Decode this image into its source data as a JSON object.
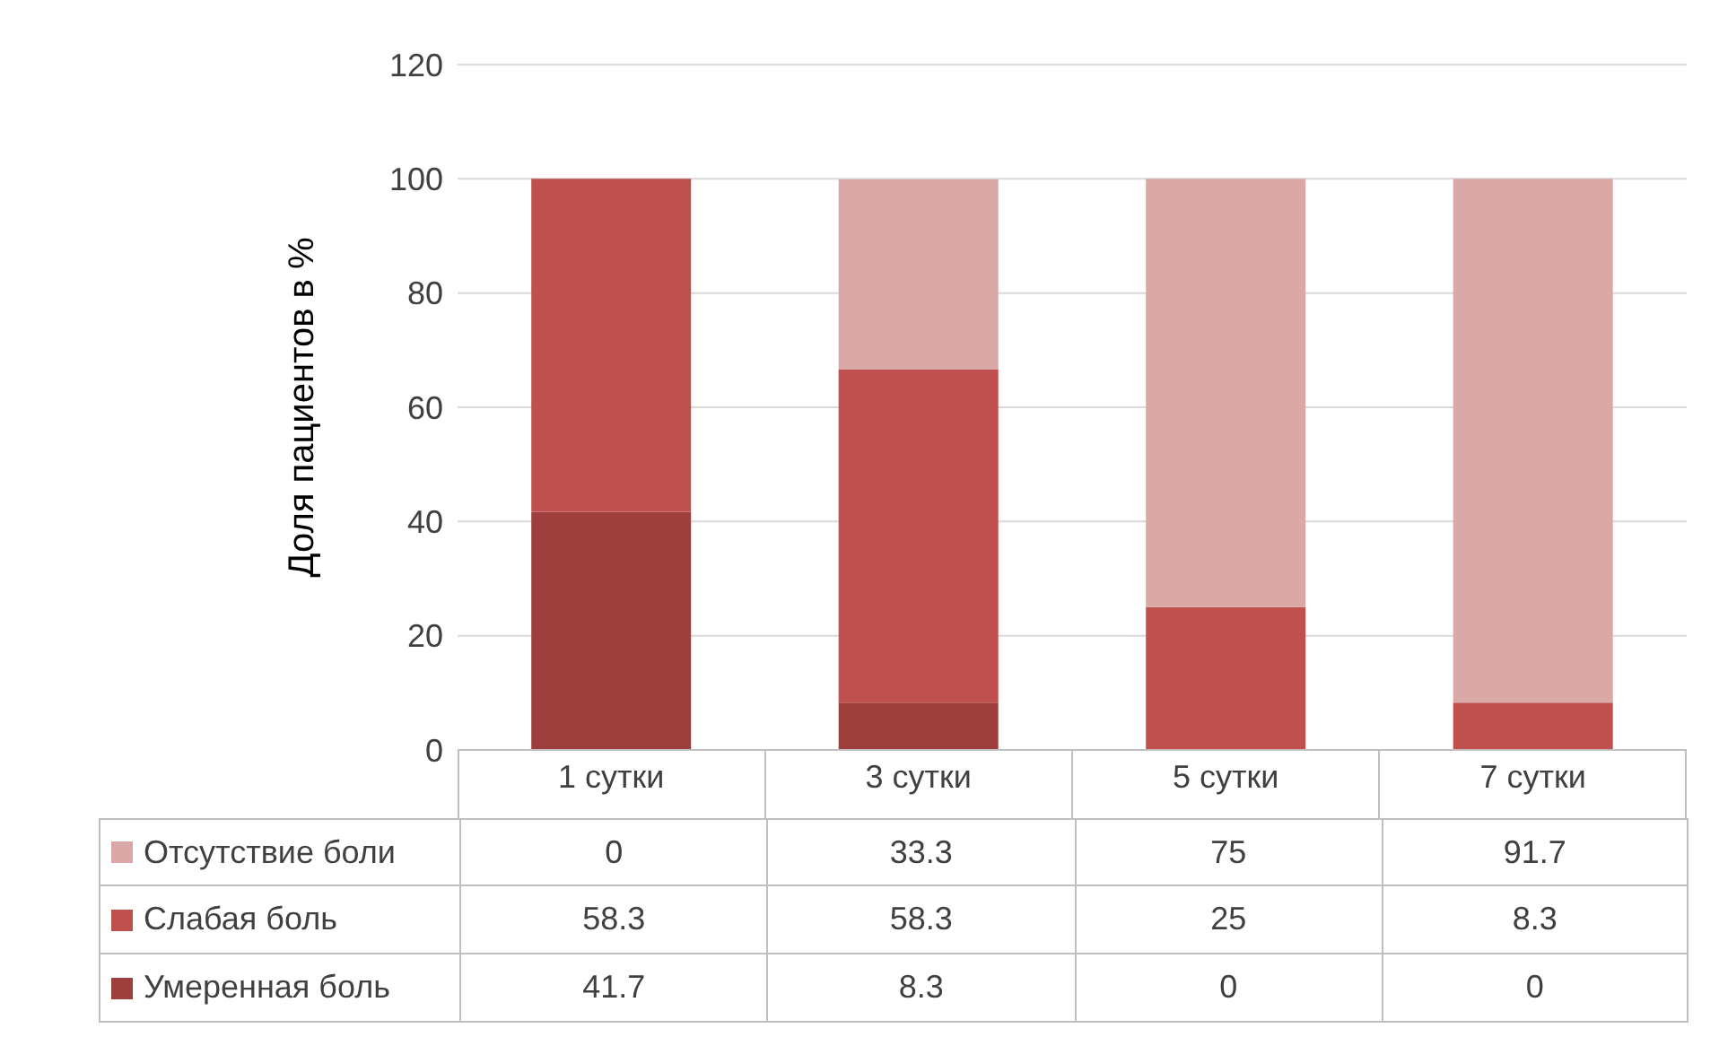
{
  "chart_data": {
    "type": "bar",
    "stacked": true,
    "ylabel": "Доля пациентов в %",
    "categories": [
      "1 сутки",
      "3 сутки",
      "5 сутки",
      "7 сутки"
    ],
    "series": [
      {
        "name": "Умеренная боль",
        "color": "#9e3f3e",
        "values": [
          41.7,
          8.3,
          0,
          0
        ]
      },
      {
        "name": "Слабая боль",
        "color": "#c0504d",
        "values": [
          58.3,
          58.3,
          25,
          8.3
        ]
      },
      {
        "name": "Отсутствие боли",
        "color": "#d9a8a7",
        "values": [
          0,
          33.3,
          75,
          91.7
        ]
      }
    ],
    "ylim": [
      0,
      120
    ],
    "yticks": [
      0,
      20,
      40,
      60,
      80,
      100,
      120
    ],
    "grid": "y",
    "legend": "bottom",
    "data_labels": true
  }
}
